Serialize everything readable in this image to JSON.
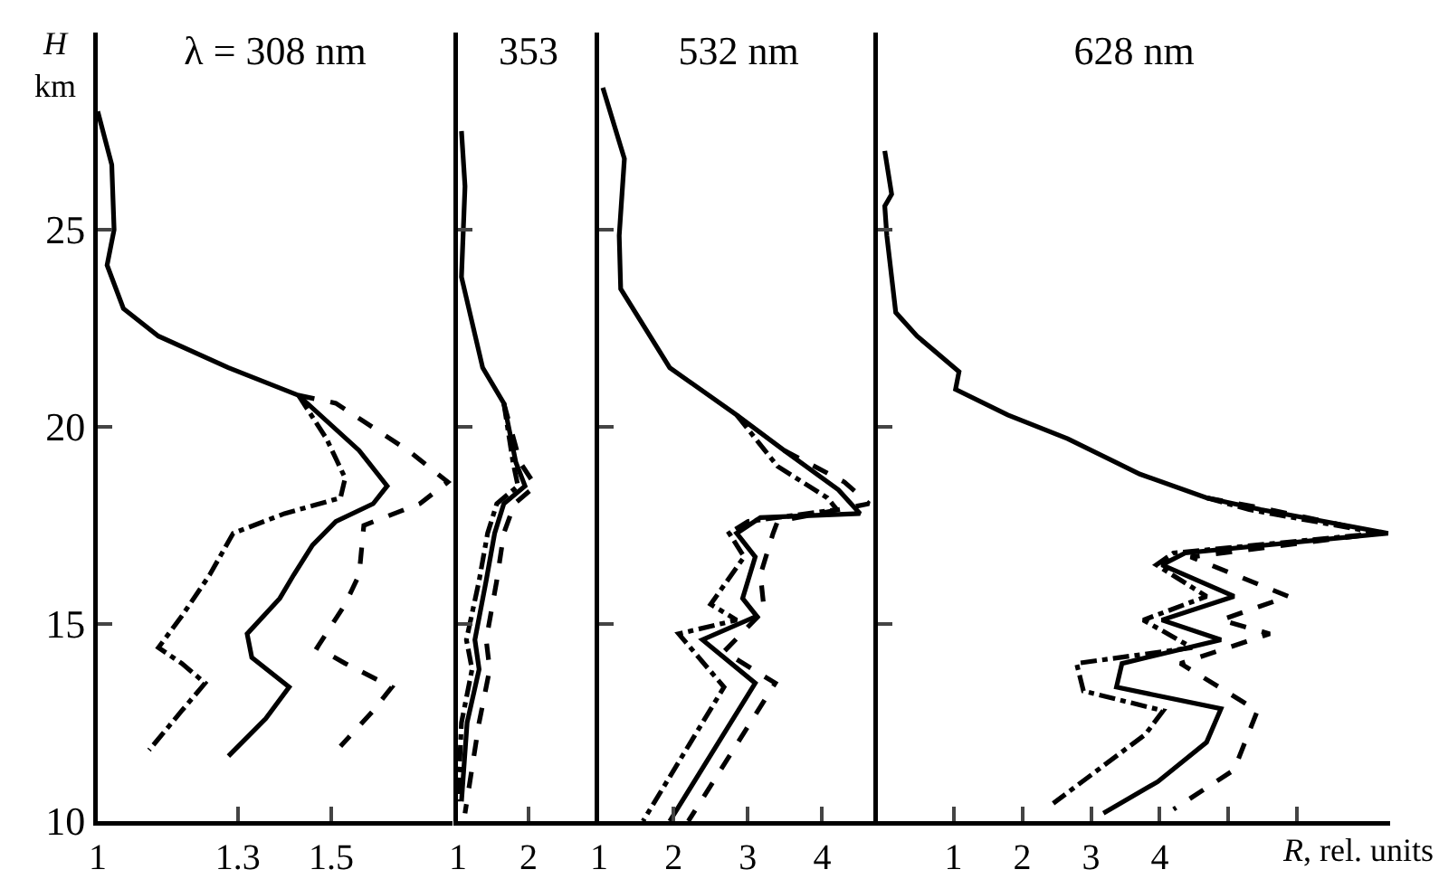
{
  "chart_data": [
    {
      "type": "line",
      "title": "λ = 308 nm",
      "ylabel": "H\nkm",
      "xlim": [
        1,
        1.76
      ],
      "xticks": [
        1,
        1.3,
        1.5
      ],
      "ylim": [
        10,
        30
      ],
      "yticks": [
        10,
        15,
        20,
        25
      ],
      "series": [
        {
          "color": "#000000",
          "line_style": "solid",
          "x": [
            1.0,
            1.03,
            1.035,
            1.02,
            1.055,
            1.13,
            1.28,
            1.43,
            1.56,
            1.62,
            1.59,
            1.51,
            1.46,
            1.42,
            1.39,
            1.32,
            1.33,
            1.41,
            1.36,
            1.28
          ],
          "values": [
            28.0,
            26.65,
            25.0,
            24.1,
            23.0,
            22.3,
            21.5,
            20.8,
            19.4,
            18.5,
            18.05,
            17.6,
            17.0,
            16.25,
            15.65,
            14.75,
            14.15,
            13.4,
            12.6,
            11.65
          ]
        },
        {
          "color": "#000000",
          "line_style": "dashdot",
          "x": [
            1.43,
            1.49,
            1.53,
            1.52,
            1.4,
            1.29,
            1.24,
            1.18,
            1.13,
            1.18,
            1.23,
            1.18,
            1.11
          ],
          "values": [
            20.8,
            19.7,
            18.7,
            18.2,
            17.8,
            17.3,
            16.25,
            15.2,
            14.4,
            14.0,
            13.5,
            12.8,
            11.8
          ]
        },
        {
          "color": "#000000",
          "line_style": "dashed",
          "x": [
            1.43,
            1.51,
            1.665,
            1.75,
            1.69,
            1.57,
            1.56,
            1.53,
            1.47,
            1.53,
            1.63,
            1.59,
            1.52
          ],
          "values": [
            20.8,
            20.6,
            19.4,
            18.6,
            18.05,
            17.5,
            16.25,
            15.5,
            14.4,
            14.0,
            13.4,
            12.8,
            11.9
          ]
        }
      ]
    },
    {
      "type": "line",
      "title": "353",
      "xlim": [
        1,
        3
      ],
      "xticks": [
        1,
        2
      ],
      "ylim": [
        10,
        30
      ],
      "yticks": [
        10,
        15,
        20,
        25
      ],
      "tick_labels": "x",
      "series": [
        {
          "color": "#000000",
          "line_style": "solid",
          "x": [
            1.05,
            1.1,
            1.05,
            1.35,
            1.65,
            1.82,
            1.95,
            1.65,
            1.52,
            1.4,
            1.24,
            1.3,
            1.13,
            1.05
          ],
          "values": [
            27.5,
            26.1,
            23.8,
            21.5,
            20.6,
            19.1,
            18.5,
            18.05,
            17.3,
            16.1,
            14.6,
            13.85,
            12.5,
            10.5
          ]
        },
        {
          "color": "#000000",
          "line_style": "dashdot",
          "x": [
            1.65,
            1.78,
            1.85,
            1.55,
            1.42,
            1.3,
            1.12,
            1.2,
            1.05,
            1.0
          ],
          "values": [
            20.6,
            19.1,
            18.5,
            18.05,
            17.3,
            16.1,
            14.6,
            13.85,
            12.5,
            10.5
          ]
        },
        {
          "color": "#000000",
          "line_style": "dashed",
          "x": [
            1.65,
            1.88,
            2.1,
            1.8,
            1.65,
            1.55,
            1.4,
            1.45,
            1.3,
            1.1
          ],
          "values": [
            20.6,
            19.1,
            18.5,
            18.05,
            17.3,
            16.1,
            14.6,
            13.85,
            12.5,
            10.2
          ]
        }
      ]
    },
    {
      "type": "line",
      "title": "532 nm",
      "xlim": [
        1,
        4.75
      ],
      "xticks": [
        1,
        2,
        3,
        4
      ],
      "ylim": [
        10,
        30
      ],
      "yticks": [
        10,
        15,
        20,
        25
      ],
      "tick_labels": "x",
      "series": [
        {
          "color": "#000000",
          "line_style": "solid",
          "x": [
            1.05,
            1.34,
            1.27,
            1.29,
            1.95,
            2.85,
            3.49,
            4.22,
            4.51,
            3.17,
            2.85,
            3.1,
            2.93,
            3.12,
            2.39,
            3.1,
            1.95
          ],
          "values": [
            28.6,
            26.8,
            24.85,
            23.5,
            21.5,
            20.3,
            19.4,
            18.4,
            17.8,
            17.7,
            17.3,
            16.7,
            15.65,
            15.2,
            14.6,
            13.5,
            10.0
          ]
        },
        {
          "color": "#000000",
          "line_style": "dashdot",
          "x": [
            2.85,
            3.4,
            4.07,
            4.2,
            3.0,
            2.75,
            2.95,
            2.5,
            2.85,
            2.07,
            2.68,
            1.59
          ],
          "values": [
            20.3,
            19.0,
            18.2,
            17.9,
            17.6,
            17.3,
            16.7,
            15.5,
            15.1,
            14.75,
            13.4,
            10.0
          ]
        },
        {
          "color": "#000000",
          "line_style": "dashed",
          "x": [
            3.49,
            4.3,
            4.63,
            3.4,
            3.34,
            3.17,
            3.22,
            2.68,
            3.37,
            2.2
          ],
          "values": [
            19.4,
            18.6,
            18.05,
            17.6,
            17.3,
            16.25,
            15.35,
            14.3,
            13.5,
            10.0
          ]
        }
      ]
    },
    {
      "type": "line",
      "title": "628 nm",
      "xlabel": "R, rel. units",
      "xlim": [
        -0.1,
        7.35
      ],
      "xticks": [
        1,
        2,
        3,
        4,
        {
          "value": 5,
          "label": null
        },
        {
          "value": 6,
          "label": null
        }
      ],
      "ylim": [
        10,
        30
      ],
      "yticks": [
        10,
        15,
        20,
        25
      ],
      "tick_labels": "x",
      "series": [
        {
          "color": "#000000",
          "line_style": "solid",
          "x": [
            0,
            0.1,
            0,
            0.03,
            0.16,
            0.47,
            1.08,
            1.03,
            1.79,
            2.66,
            3.71,
            4.68,
            5.47,
            7.32,
            4.37,
            4.03,
            5.08,
            4.03,
            4.89,
            3.45,
            3.37,
            4.89,
            4.68,
            3.97,
            3.18
          ],
          "values": [
            27.0,
            25.9,
            25.6,
            24.85,
            22.9,
            22.3,
            21.4,
            20.95,
            20.3,
            19.7,
            18.8,
            18.2,
            17.9,
            17.3,
            16.8,
            16.5,
            15.7,
            15.1,
            14.6,
            14.0,
            13.4,
            12.85,
            12.0,
            11.0,
            10.2
          ]
        },
        {
          "color": "#000000",
          "line_style": "dashdot",
          "x": [
            4.68,
            5.3,
            7.2,
            4.2,
            3.95,
            4.68,
            3.76,
            4.47,
            2.79,
            2.89,
            4.05,
            3.79,
            2.45
          ],
          "values": [
            18.2,
            17.9,
            17.3,
            16.8,
            16.5,
            15.7,
            15.1,
            14.4,
            14.0,
            13.3,
            12.8,
            12.2,
            10.45
          ]
        },
        {
          "color": "#000000",
          "line_style": "dashed",
          "x": [
            4.68,
            5.6,
            7.2,
            4.45,
            5.87,
            4.89,
            5.6,
            4.3,
            5.42,
            5.08,
            4.2
          ],
          "values": [
            18.2,
            17.9,
            17.3,
            16.7,
            15.7,
            15.1,
            14.75,
            14.0,
            12.8,
            11.3,
            10.3
          ]
        }
      ]
    }
  ]
}
